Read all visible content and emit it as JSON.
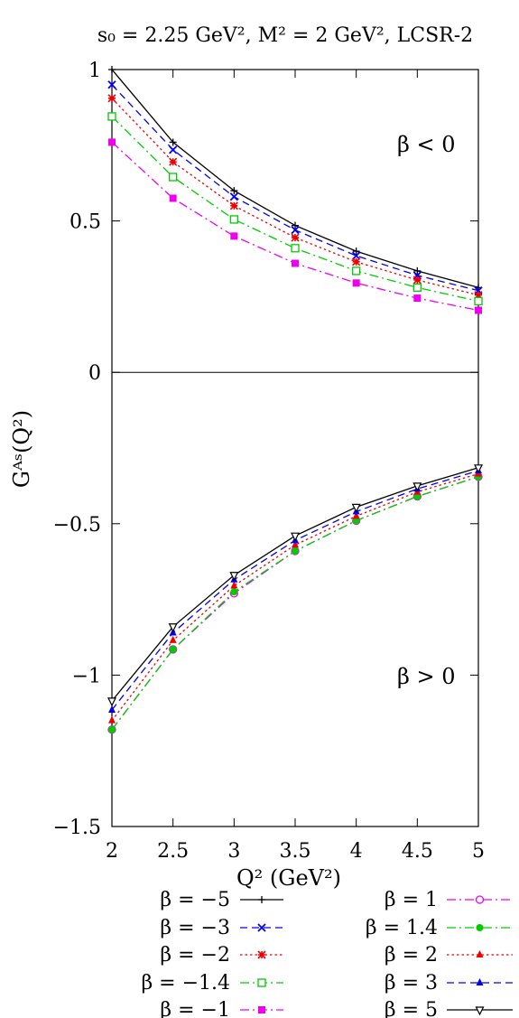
{
  "chart_data": {
    "type": "line",
    "title": "s₀ = 2.25 GeV²,  M² = 2 GeV², LCSR-2",
    "xlabel": "Q² (GeV²)",
    "ylabel": "Gᴬˢ(Q²)",
    "xlim": [
      2,
      5
    ],
    "ylim": [
      -1.5,
      1
    ],
    "grid": false,
    "legend_position": "bottom",
    "x_ticks": [
      "2",
      "2.5",
      "3",
      "3.5",
      "4",
      "4.5",
      "5"
    ],
    "y_ticks": [
      "1",
      "0.5",
      "0",
      "−0.5",
      "−1",
      "−1.5"
    ],
    "annotations": {
      "upper": "β < 0",
      "lower": "β > 0"
    },
    "x": [
      2,
      2.5,
      3,
      3.5,
      4,
      4.5,
      5
    ],
    "series": [
      {
        "name": "β = −5",
        "color": "#000000",
        "dash": "solid",
        "marker": "plus",
        "values": [
          1.0,
          0.76,
          0.6,
          0.485,
          0.4,
          0.335,
          0.28
        ]
      },
      {
        "name": "β = −3",
        "color": "#0000ee",
        "dash": "dashed",
        "marker": "x",
        "values": [
          0.95,
          0.735,
          0.58,
          0.47,
          0.385,
          0.32,
          0.27
        ]
      },
      {
        "name": "β = −2",
        "color": "#ee0000",
        "dash": "dotted",
        "marker": "star",
        "values": [
          0.905,
          0.695,
          0.55,
          0.445,
          0.365,
          0.305,
          0.255
        ]
      },
      {
        "name": "β = −1.4",
        "color": "#00cc00",
        "dash": "dashdot",
        "marker": "square",
        "values": [
          0.845,
          0.645,
          0.505,
          0.41,
          0.335,
          0.28,
          0.235
        ]
      },
      {
        "name": "β = −1",
        "color": "#ee00ee",
        "dash": "dashdot",
        "marker": "fsquare",
        "values": [
          0.76,
          0.575,
          0.45,
          0.36,
          0.295,
          0.245,
          0.205
        ]
      },
      {
        "name": "β = 1",
        "color": "#ee00ee",
        "dash": "dashdot",
        "marker": "circle",
        "values": [
          -1.18,
          -0.915,
          -0.73,
          -0.59,
          -0.49,
          -0.41,
          -0.345
        ]
      },
      {
        "name": "β = 1.4",
        "color": "#00cc00",
        "dash": "dashdot",
        "marker": "fcircle",
        "values": [
          -1.18,
          -0.915,
          -0.725,
          -0.59,
          -0.49,
          -0.41,
          -0.345
        ]
      },
      {
        "name": "β = 2",
        "color": "#ee0000",
        "dash": "dotted",
        "marker": "ftriangle",
        "values": [
          -1.15,
          -0.885,
          -0.705,
          -0.57,
          -0.475,
          -0.395,
          -0.335
        ]
      },
      {
        "name": "β = 3",
        "color": "#0000ee",
        "dash": "dashed",
        "marker": "ftriangle",
        "values": [
          -1.115,
          -0.86,
          -0.685,
          -0.555,
          -0.46,
          -0.385,
          -0.325
        ]
      },
      {
        "name": "β = 5",
        "color": "#000000",
        "dash": "solid",
        "marker": "itriangle",
        "values": [
          -1.085,
          -0.84,
          -0.67,
          -0.54,
          -0.445,
          -0.375,
          -0.315
        ]
      }
    ]
  }
}
